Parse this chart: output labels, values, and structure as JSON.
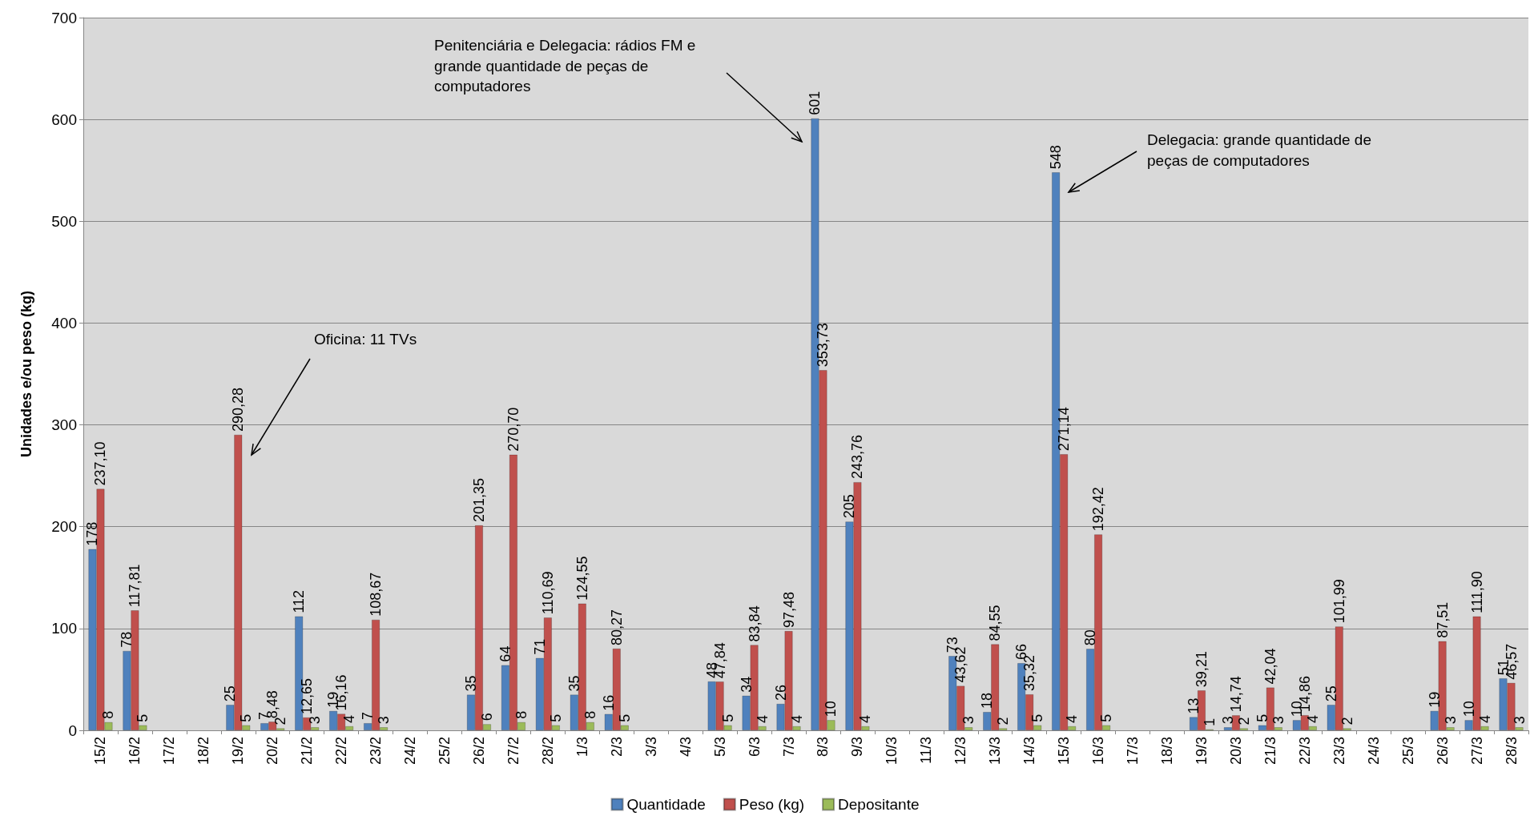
{
  "chart_data": {
    "type": "bar",
    "ylabel": "Unidades e/ou peso (kg)",
    "categories": [
      "15/2",
      "16/2",
      "17/2",
      "18/2",
      "19/2",
      "20/2",
      "21/2",
      "22/2",
      "23/2",
      "24/2",
      "25/2",
      "26/2",
      "27/2",
      "28/2",
      "1/3",
      "2/3",
      "3/3",
      "4/3",
      "5/3",
      "6/3",
      "7/3",
      "8/3",
      "9/3",
      "10/3",
      "11/3",
      "12/3",
      "13/3",
      "14/3",
      "15/3",
      "16/3",
      "17/3",
      "18/3",
      "19/3",
      "20/3",
      "21/3",
      "22/3",
      "23/3",
      "24/3",
      "25/3",
      "26/3",
      "27/3",
      "28/3"
    ],
    "series": [
      {
        "name": "Quantidade",
        "color": "#4f81bd",
        "values": [
          178,
          78,
          null,
          null,
          25,
          7,
          112,
          19,
          7,
          null,
          null,
          35,
          64,
          71,
          35,
          16,
          null,
          null,
          48,
          34,
          26,
          601,
          205,
          null,
          null,
          73,
          18,
          66,
          548,
          80,
          null,
          null,
          13,
          3,
          5,
          10,
          25,
          null,
          null,
          19,
          10,
          51
        ],
        "value_labels": [
          "178",
          "78",
          null,
          null,
          "25",
          "7",
          "112",
          "19",
          "7",
          null,
          null,
          "35",
          "64",
          "71",
          "35",
          "16",
          null,
          null,
          "48",
          "34",
          "26",
          "601",
          "205",
          null,
          null,
          "73",
          "18",
          "66",
          "548",
          "80",
          null,
          null,
          "13",
          "3",
          "5",
          "10",
          "25",
          null,
          null,
          "19",
          "10",
          "51"
        ]
      },
      {
        "name": "Peso (kg)",
        "color": "#c0504d",
        "values": [
          237.1,
          117.81,
          null,
          null,
          290.28,
          8.48,
          12.65,
          16.16,
          108.67,
          null,
          null,
          201.35,
          270.7,
          110.69,
          124.55,
          80.27,
          null,
          null,
          47.84,
          83.84,
          97.48,
          353.73,
          243.76,
          null,
          null,
          43.62,
          84.55,
          35.32,
          271.14,
          192.42,
          null,
          null,
          39.21,
          14.74,
          42.04,
          14.86,
          101.99,
          null,
          null,
          87.51,
          111.9,
          46.57
        ],
        "value_labels": [
          "237,10",
          "117,81",
          null,
          null,
          "290,28",
          "8,48",
          "12,65",
          "16,16",
          "108,67",
          null,
          null,
          "201,35",
          "270,70",
          "110,69",
          "124,55",
          "80,27",
          null,
          null,
          "47,84",
          "83,84",
          "97,48",
          "353,73",
          "243,76",
          null,
          null,
          "43,62",
          "84,55",
          "35,32",
          "271,14",
          "192,42",
          null,
          null,
          "39,21",
          "14,74",
          "42,04",
          "14,86",
          "101,99",
          null,
          null,
          "87,51",
          "111,90",
          "46,57"
        ]
      },
      {
        "name": "Depositante",
        "color": "#9bbb59",
        "values": [
          8,
          5,
          null,
          null,
          5,
          2,
          3,
          4,
          3,
          null,
          null,
          6,
          8,
          5,
          8,
          5,
          null,
          null,
          5,
          4,
          4,
          10,
          4,
          null,
          null,
          3,
          2,
          5,
          4,
          5,
          null,
          null,
          1,
          2,
          3,
          4,
          2,
          null,
          null,
          3,
          4,
          3
        ],
        "value_labels": [
          "8",
          "5",
          null,
          null,
          "5",
          "2",
          "3",
          "4",
          "3",
          null,
          null,
          "6",
          "8",
          "5",
          "8",
          "5",
          null,
          null,
          "5",
          "4",
          "4",
          "10",
          "4",
          null,
          null,
          "3",
          "2",
          "5",
          "4",
          "5",
          null,
          null,
          "1",
          "2",
          "3",
          "4",
          "2",
          null,
          null,
          "3",
          "4",
          "3"
        ]
      }
    ],
    "ylim": [
      0,
      700
    ],
    "yticks": [
      0,
      100,
      200,
      300,
      400,
      500,
      600,
      700
    ],
    "grid": "y",
    "legend": "bottom",
    "annotations": [
      "Penitenciária e Delegacia: rádios FM e grande quantidade de peças de computadores",
      "Delegacia: grande quantidade de peças de computadores",
      "Oficina: 11 TVs"
    ]
  }
}
